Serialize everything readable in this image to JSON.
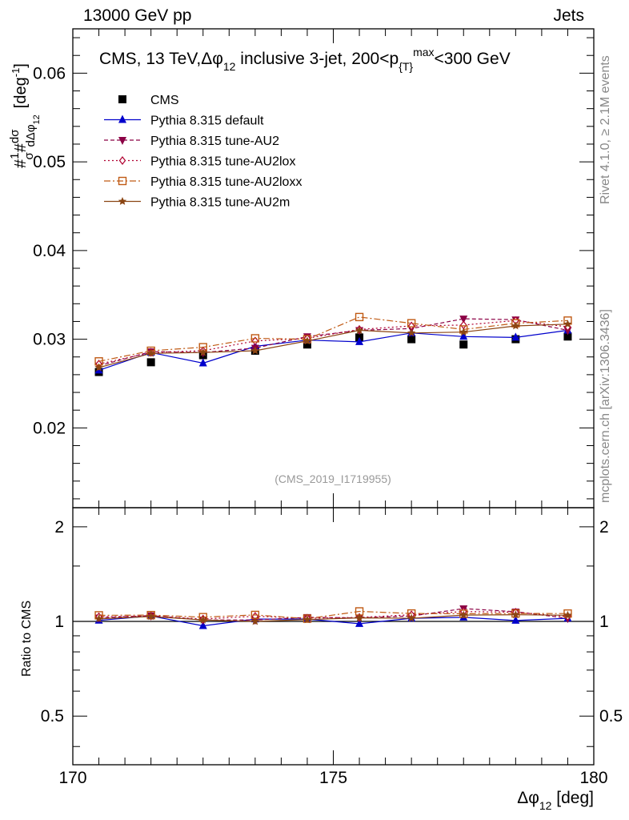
{
  "header": {
    "left": "13000 GeV pp",
    "right": "Jets"
  },
  "side": {
    "rivet": "Rivet 4.1.0, ≥ 2.1M events",
    "mcplots": "mcplots.cern.ch [arXiv:1306.3436]"
  },
  "chart_data": {
    "type": "line",
    "title": "CMS, 13 TeV,Δφ₁₂ inclusive 3-jet, 200<p{T}^max<300 GeV",
    "title_parts": {
      "prefix": "CMS, 13 TeV,Δφ",
      "sub1": "12",
      "mid": " inclusive 3-jet, 200<p",
      "sub2": "{T}",
      "sup": "max",
      "suffix": "<300 GeV"
    },
    "analysis_id": "(CMS_2019_I1719955)",
    "ylabel": "#1/σ # dσ/dΔφ₁₂ [deg⁻¹]",
    "ylabel_parts": {
      "hash": "#",
      "one": "1",
      "sigma": "σ",
      "dsigma": "dσ",
      "dphi": "dΔφ",
      "sub": "12",
      "unit": "[deg",
      "unit_sup": "-1",
      "unit_close": "]"
    },
    "xlabel": "Δφ₁₂ [deg]",
    "xlabel_parts": {
      "main": "Δφ",
      "sub": "12",
      "unit": " [deg]"
    },
    "ratio_ylabel": "Ratio to CMS",
    "xlim": [
      170,
      180
    ],
    "ylim": [
      0.011,
      0.065
    ],
    "ratio_ylim": [
      0.35,
      2.3
    ],
    "x_ticks": [
      "170",
      "175",
      "180"
    ],
    "y_ticks": [
      "0.02",
      "0.03",
      "0.04",
      "0.05",
      "0.06"
    ],
    "ratio_ticks_left": [
      "0.5",
      "1",
      "2"
    ],
    "ratio_ticks_right": [
      "0.5",
      "1",
      "2"
    ],
    "x": [
      170.5,
      171.5,
      172.5,
      173.5,
      174.5,
      175.5,
      176.5,
      177.5,
      178.5,
      179.5
    ],
    "data": {
      "name": "CMS",
      "values": [
        0.0263,
        0.0274,
        0.0282,
        0.0287,
        0.0294,
        0.0302,
        0.03,
        0.0294,
        0.03,
        0.0303
      ]
    },
    "series": [
      {
        "name": "Pythia 8.315 default",
        "color": "#0000cc",
        "marker": "triangle-up",
        "dash": "",
        "values": [
          0.0265,
          0.0285,
          0.0273,
          0.0292,
          0.0299,
          0.0297,
          0.0307,
          0.0303,
          0.0302,
          0.031
        ]
      },
      {
        "name": "Pythia 8.315 tune-AU2",
        "color": "#8b0045",
        "marker": "triangle-down",
        "dash": "5,3",
        "values": [
          0.027,
          0.0286,
          0.0285,
          0.029,
          0.0303,
          0.031,
          0.0312,
          0.0323,
          0.0322,
          0.031
        ]
      },
      {
        "name": "Pythia 8.315 tune-AU2lox",
        "color": "#b00030",
        "marker": "diamond-open",
        "dash": "2,3",
        "values": [
          0.0272,
          0.0285,
          0.0287,
          0.0298,
          0.0301,
          0.0311,
          0.0315,
          0.0316,
          0.0321,
          0.0314
        ]
      },
      {
        "name": "Pythia 8.315 tune-AU2loxx",
        "color": "#c05a14",
        "marker": "square-open",
        "dash": "8,3,2,3",
        "values": [
          0.0275,
          0.0287,
          0.0291,
          0.0301,
          0.03,
          0.0325,
          0.0318,
          0.0311,
          0.0318,
          0.0321
        ]
      },
      {
        "name": "Pythia 8.315 tune-AU2m",
        "color": "#8b4513",
        "marker": "star",
        "dash": "",
        "values": [
          0.0268,
          0.0284,
          0.0285,
          0.0287,
          0.0298,
          0.031,
          0.0307,
          0.0308,
          0.0315,
          0.0317
        ]
      }
    ]
  }
}
